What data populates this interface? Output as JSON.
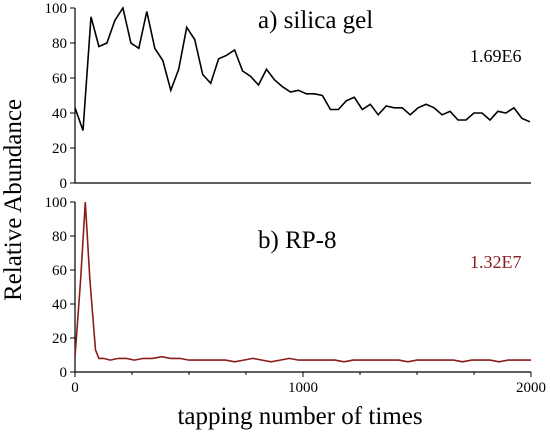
{
  "chart_data": {
    "type": "line",
    "ylabel": "Relative Abundance",
    "xlabel": "tapping number of times",
    "xlim": [
      0,
      2000
    ],
    "xticks": [
      0,
      1000,
      2000
    ],
    "grid": false,
    "panels": [
      {
        "title": "a) silica gel",
        "intensity_label": "1.69E6",
        "color": "#000000",
        "ylim": [
          0,
          100
        ],
        "yticks": [
          0,
          20,
          40,
          60,
          80,
          100
        ],
        "x": [
          0,
          35,
          70,
          105,
          140,
          175,
          210,
          245,
          280,
          315,
          350,
          385,
          420,
          455,
          490,
          525,
          560,
          595,
          630,
          665,
          700,
          735,
          770,
          805,
          840,
          875,
          910,
          945,
          980,
          1015,
          1050,
          1085,
          1120,
          1155,
          1190,
          1225,
          1260,
          1295,
          1330,
          1365,
          1400,
          1435,
          1470,
          1505,
          1540,
          1575,
          1610,
          1645,
          1680,
          1715,
          1750,
          1785,
          1820,
          1855,
          1890,
          1925,
          1960,
          1995
        ],
        "y": [
          43,
          30,
          95,
          78,
          80,
          93,
          100,
          80,
          77,
          98,
          77,
          70,
          53,
          65,
          89,
          82,
          62,
          57,
          71,
          73,
          76,
          64,
          61,
          56,
          65,
          59,
          55,
          52,
          53,
          51,
          51,
          50,
          42,
          42,
          47,
          49,
          42,
          45,
          39,
          44,
          43,
          43,
          39,
          43,
          45,
          43,
          39,
          41,
          36,
          36,
          40,
          40,
          36,
          41,
          40,
          43,
          37,
          35
        ]
      },
      {
        "title": "b) RP-8",
        "intensity_label": "1.32E7",
        "color": "#8b1c1c",
        "ylim": [
          0,
          100
        ],
        "yticks": [
          0,
          20,
          40,
          60,
          80,
          100
        ],
        "x": [
          0,
          25,
          45,
          65,
          90,
          105,
          125,
          155,
          190,
          225,
          260,
          300,
          340,
          380,
          420,
          460,
          500,
          540,
          580,
          620,
          660,
          700,
          740,
          780,
          820,
          860,
          900,
          940,
          980,
          1020,
          1060,
          1100,
          1140,
          1180,
          1220,
          1260,
          1300,
          1340,
          1380,
          1420,
          1460,
          1500,
          1540,
          1580,
          1620,
          1660,
          1700,
          1740,
          1780,
          1820,
          1860,
          1900,
          1940,
          1980,
          2000
        ],
        "y": [
          9,
          55,
          100,
          55,
          13,
          8,
          8,
          7,
          8,
          8,
          7,
          8,
          8,
          9,
          8,
          8,
          7,
          7,
          7,
          7,
          7,
          6,
          7,
          8,
          7,
          6,
          7,
          8,
          7,
          7,
          7,
          7,
          7,
          6,
          7,
          7,
          7,
          7,
          7,
          7,
          6,
          7,
          7,
          7,
          7,
          7,
          6,
          7,
          7,
          7,
          6,
          7,
          7,
          7,
          7
        ]
      }
    ]
  }
}
